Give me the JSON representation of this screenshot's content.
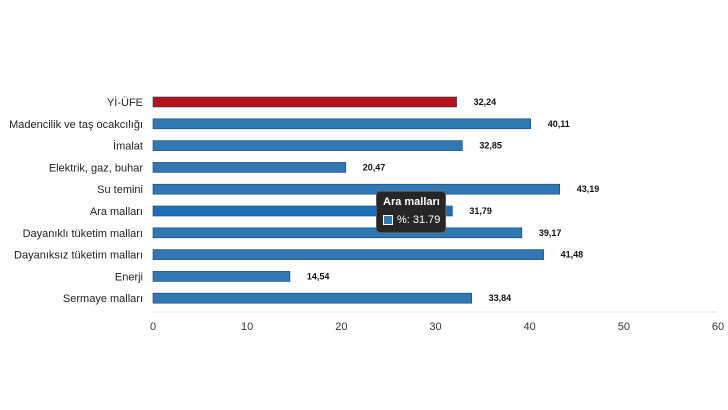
{
  "chart_data": {
    "type": "bar",
    "orientation": "horizontal",
    "categories": [
      "Yİ-ÜFE",
      "Madencilik ve taş ocakcılığı",
      "İmalat",
      "Elektrik, gaz, buhar",
      "Su temini",
      "Ara malları",
      "Dayanıklı tüketim malları",
      "Dayanıksız tüketim malları",
      "Enerji",
      "Sermaye malları"
    ],
    "values": [
      32.24,
      40.11,
      32.85,
      20.47,
      43.19,
      31.79,
      39.17,
      41.48,
      14.54,
      33.84
    ],
    "value_labels": [
      "32,24",
      "40,11",
      "32,85",
      "20,47",
      "43,19",
      "31,79",
      "39,17",
      "41,48",
      "14,54",
      "33,84"
    ],
    "highlight_index": 0,
    "hovered_index": 5,
    "colors": {
      "default": "#2f78b4",
      "highlight": "#b5121b",
      "hovered": "#1f6fb8"
    },
    "xlim": [
      0,
      60
    ],
    "xticks": [
      "0",
      "10",
      "20",
      "30",
      "40",
      "50",
      "60"
    ],
    "grid": false,
    "title": "",
    "xlabel": "",
    "ylabel": ""
  },
  "tooltip": {
    "title": "Ara malları",
    "value": "%: 31.79"
  }
}
